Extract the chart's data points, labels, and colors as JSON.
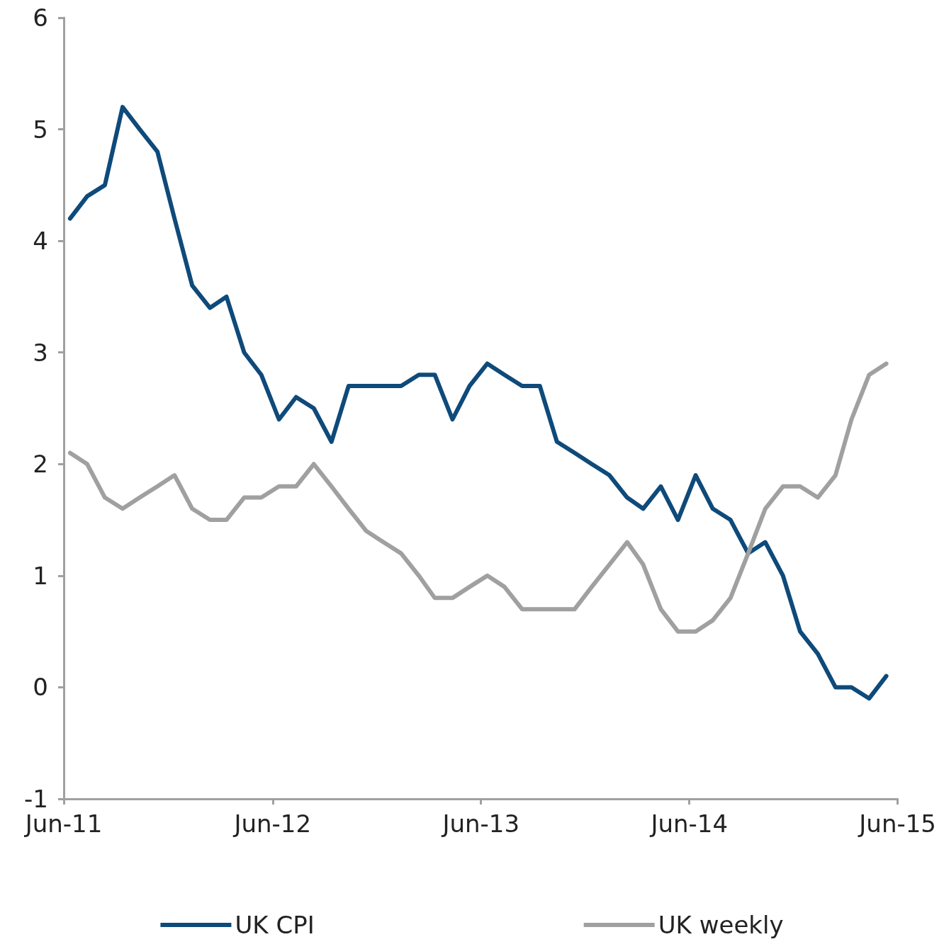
{
  "chart_data": {
    "type": "line",
    "x": [
      "2011-06-12",
      "2011-07-12",
      "2011-08-12",
      "2011-09-12",
      "2011-10-12",
      "2011-11-12",
      "2011-12-12",
      "2012-01-12",
      "2012-02-12",
      "2012-03-12",
      "2012-04-12",
      "2012-05-12",
      "2012-06-12",
      "2012-07-12",
      "2012-08-12",
      "2012-09-12",
      "2012-10-12",
      "2012-11-12",
      "2012-12-12",
      "2013-01-12",
      "2013-02-12",
      "2013-03-12",
      "2013-04-12",
      "2013-05-12",
      "2013-06-12",
      "2013-07-12",
      "2013-08-12",
      "2013-09-12",
      "2013-10-12",
      "2013-11-12",
      "2013-12-12",
      "2014-01-12",
      "2014-02-12",
      "2014-03-12",
      "2014-04-12",
      "2014-05-12",
      "2014-06-12",
      "2014-07-12",
      "2014-08-12",
      "2014-09-12",
      "2014-10-12",
      "2014-11-12",
      "2014-12-12",
      "2015-01-12",
      "2015-02-12",
      "2015-03-12",
      "2015-04-12",
      "2015-05-12"
    ],
    "series": [
      {
        "name": "UK CPI",
        "color": "#0e4a7a",
        "values": [
          4.2,
          4.4,
          4.5,
          5.2,
          5.0,
          4.8,
          4.2,
          3.6,
          3.4,
          3.5,
          3.0,
          2.8,
          2.4,
          2.6,
          2.5,
          2.2,
          2.7,
          2.7,
          2.7,
          2.7,
          2.8,
          2.8,
          2.4,
          2.7,
          2.9,
          2.8,
          2.7,
          2.7,
          2.2,
          2.1,
          2.0,
          1.9,
          1.7,
          1.6,
          1.8,
          1.5,
          1.9,
          1.6,
          1.5,
          1.2,
          1.3,
          1.0,
          0.5,
          0.3,
          0.0,
          0.0,
          -0.1,
          0.1
        ]
      },
      {
        "name": "UK weekly",
        "color": "#a0a0a0",
        "values": [
          2.1,
          2.0,
          1.7,
          1.6,
          1.7,
          1.8,
          1.9,
          1.6,
          1.5,
          1.5,
          1.7,
          1.7,
          1.8,
          1.8,
          2.0,
          1.8,
          1.6,
          1.4,
          1.3,
          1.2,
          1.0,
          0.8,
          0.8,
          0.9,
          1.0,
          0.9,
          0.7,
          0.7,
          0.7,
          0.7,
          0.9,
          1.1,
          1.3,
          1.1,
          0.7,
          0.5,
          0.5,
          0.6,
          0.8,
          1.2,
          1.6,
          1.8,
          1.8,
          1.7,
          1.9,
          2.4,
          2.8,
          2.9
        ]
      }
    ],
    "xlim": [
      "2011-06-01",
      "2015-06-01"
    ],
    "xticks": [
      {
        "value": "2011-06-01",
        "label": "Jun-11"
      },
      {
        "value": "2012-06-01",
        "label": "Jun-12"
      },
      {
        "value": "2013-06-01",
        "label": "Jun-13"
      },
      {
        "value": "2014-06-01",
        "label": "Jun-14"
      },
      {
        "value": "2015-06-01",
        "label": "Jun-15"
      }
    ],
    "ylim": [
      -1,
      6
    ],
    "yticks": [
      -1,
      0,
      1,
      2,
      3,
      4,
      5,
      6
    ],
    "grid": false,
    "legend": "bottom",
    "marker": "none",
    "line_style": "solid"
  }
}
